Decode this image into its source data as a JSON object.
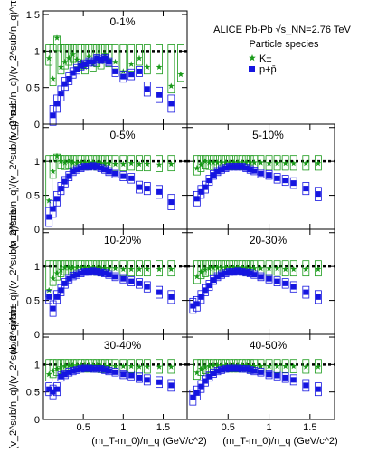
{
  "figure": {
    "x_label": "(m_T-m_0)/n_q (GeV/c^2)",
    "y_label": "(v_2^sub/n_q)/(v_2^sub/n_q)^π±",
    "legend_header": "ALICE Pb-Pb √s_NN=2.76 TeV",
    "legend_title": "Particle species",
    "legend_items": [
      {
        "label": "K±",
        "marker": "star",
        "color": "#1a9a1a"
      },
      {
        "label": "p+p̄",
        "marker": "square",
        "color": "#1515e0"
      }
    ],
    "y_ticks": [
      "0",
      "0.5",
      "1",
      "1.5"
    ],
    "x_ticks": [
      "0.5",
      "1",
      "1.5"
    ]
  },
  "chart_data": [
    {
      "type": "scatter",
      "panel": "0-1%",
      "xlim": [
        0,
        1.8
      ],
      "ylim": [
        0,
        1.55
      ],
      "grid": false,
      "reference_line": 1,
      "series": [
        {
          "name": "K±",
          "x": [
            0.07,
            0.12,
            0.17,
            0.22,
            0.27,
            0.32,
            0.37,
            0.42,
            0.47,
            0.52,
            0.57,
            0.62,
            0.67,
            0.72,
            0.77,
            0.82,
            0.9,
            1.0,
            1.1,
            1.2,
            1.3,
            1.45,
            1.6,
            1.72
          ],
          "y": [
            0.9,
            0.62,
            1.18,
            0.78,
            0.85,
            0.9,
            0.95,
            0.88,
            0.85,
            0.78,
            0.92,
            0.82,
            0.88,
            0.85,
            0.95,
            0.88,
            0.85,
            0.72,
            0.82,
            0.9,
            0.78,
            0.78,
            0.52,
            0.68
          ]
        },
        {
          "name": "p+p̄",
          "x": [
            0.12,
            0.17,
            0.22,
            0.27,
            0.32,
            0.37,
            0.42,
            0.47,
            0.52,
            0.57,
            0.62,
            0.67,
            0.72,
            0.77,
            0.82,
            0.9,
            1.0,
            1.1,
            1.2,
            1.3,
            1.45,
            1.6
          ],
          "y": [
            0.12,
            0.28,
            0.42,
            0.55,
            0.62,
            0.7,
            0.75,
            0.8,
            0.82,
            0.85,
            0.85,
            0.9,
            0.88,
            0.9,
            0.85,
            0.72,
            0.65,
            0.68,
            0.72,
            0.48,
            0.4,
            0.28
          ]
        }
      ]
    },
    {
      "type": "scatter",
      "panel": "0-5%",
      "xlim": [
        0,
        1.8
      ],
      "ylim": [
        0,
        1.55
      ],
      "grid": false,
      "reference_line": 1,
      "series": [
        {
          "name": "K±",
          "x": [
            0.07,
            0.12,
            0.17,
            0.22,
            0.27,
            0.32,
            0.37,
            0.42,
            0.47,
            0.52,
            0.57,
            0.62,
            0.67,
            0.72,
            0.77,
            0.82,
            0.9,
            1.0,
            1.1,
            1.2,
            1.3,
            1.45,
            1.6
          ],
          "y": [
            0.42,
            0.85,
            1.08,
            1.0,
            0.98,
            1.0,
            0.98,
            0.97,
            0.98,
            0.98,
            0.98,
            0.98,
            0.97,
            0.97,
            0.96,
            0.97,
            0.96,
            0.96,
            0.97,
            0.96,
            0.96,
            0.95,
            0.96
          ]
        },
        {
          "name": "p+p̄",
          "x": [
            0.07,
            0.12,
            0.17,
            0.22,
            0.27,
            0.32,
            0.37,
            0.42,
            0.47,
            0.52,
            0.57,
            0.62,
            0.67,
            0.72,
            0.77,
            0.82,
            0.9,
            1.0,
            1.1,
            1.2,
            1.3,
            1.45,
            1.6
          ],
          "y": [
            0.18,
            0.3,
            0.45,
            0.6,
            0.7,
            0.78,
            0.85,
            0.88,
            0.9,
            0.92,
            0.92,
            0.93,
            0.92,
            0.9,
            0.88,
            0.85,
            0.82,
            0.78,
            0.75,
            0.62,
            0.6,
            0.55,
            0.4
          ]
        }
      ]
    },
    {
      "type": "scatter",
      "panel": "5-10%",
      "xlim": [
        0,
        1.8
      ],
      "ylim": [
        0,
        1.55
      ],
      "grid": false,
      "reference_line": 1,
      "series": [
        {
          "name": "K±",
          "x": [
            0.12,
            0.17,
            0.22,
            0.27,
            0.32,
            0.37,
            0.42,
            0.47,
            0.52,
            0.57,
            0.62,
            0.67,
            0.72,
            0.77,
            0.82,
            0.9,
            1.0,
            1.1,
            1.2,
            1.3,
            1.45,
            1.6
          ],
          "y": [
            0.9,
            0.95,
            1.0,
            0.98,
            0.98,
            0.98,
            0.98,
            0.98,
            0.98,
            0.98,
            0.98,
            0.98,
            0.98,
            0.98,
            0.98,
            0.98,
            0.97,
            0.97,
            0.97,
            0.97,
            0.97,
            0.97
          ]
        },
        {
          "name": "p+p̄",
          "x": [
            0.12,
            0.17,
            0.22,
            0.27,
            0.32,
            0.37,
            0.42,
            0.47,
            0.52,
            0.57,
            0.62,
            0.67,
            0.72,
            0.77,
            0.82,
            0.9,
            1.0,
            1.1,
            1.2,
            1.3,
            1.45,
            1.6
          ],
          "y": [
            0.45,
            0.55,
            0.62,
            0.72,
            0.8,
            0.85,
            0.88,
            0.9,
            0.92,
            0.92,
            0.92,
            0.92,
            0.9,
            0.88,
            0.86,
            0.82,
            0.8,
            0.75,
            0.72,
            0.68,
            0.6,
            0.52
          ]
        }
      ]
    },
    {
      "type": "scatter",
      "panel": "10-20%",
      "xlim": [
        0,
        1.8
      ],
      "ylim": [
        0,
        1.55
      ],
      "grid": false,
      "reference_line": 1,
      "series": [
        {
          "name": "K±",
          "x": [
            0.07,
            0.12,
            0.17,
            0.22,
            0.27,
            0.32,
            0.37,
            0.42,
            0.47,
            0.52,
            0.57,
            0.62,
            0.67,
            0.72,
            0.77,
            0.82,
            0.9,
            1.0,
            1.1,
            1.2,
            1.3,
            1.45,
            1.6
          ],
          "y": [
            0.65,
            0.82,
            0.9,
            0.95,
            0.98,
            0.98,
            0.98,
            0.98,
            0.98,
            0.98,
            0.98,
            0.98,
            0.97,
            0.97,
            0.97,
            0.97,
            0.97,
            0.96,
            0.96,
            0.96,
            0.96,
            0.96,
            0.96
          ]
        },
        {
          "name": "p+p̄",
          "x": [
            0.07,
            0.12,
            0.17,
            0.22,
            0.27,
            0.32,
            0.37,
            0.42,
            0.47,
            0.52,
            0.57,
            0.62,
            0.67,
            0.72,
            0.77,
            0.82,
            0.9,
            1.0,
            1.1,
            1.2,
            1.3,
            1.45,
            1.6
          ],
          "y": [
            0.55,
            0.38,
            0.55,
            0.65,
            0.75,
            0.82,
            0.86,
            0.88,
            0.9,
            0.92,
            0.92,
            0.93,
            0.92,
            0.91,
            0.9,
            0.88,
            0.85,
            0.82,
            0.78,
            0.75,
            0.7,
            0.62,
            0.55
          ]
        }
      ]
    },
    {
      "type": "scatter",
      "panel": "20-30%",
      "xlim": [
        0,
        1.8
      ],
      "ylim": [
        0,
        1.55
      ],
      "grid": false,
      "reference_line": 1,
      "series": [
        {
          "name": "K±",
          "x": [
            0.12,
            0.17,
            0.22,
            0.27,
            0.32,
            0.37,
            0.42,
            0.47,
            0.52,
            0.57,
            0.62,
            0.67,
            0.72,
            0.77,
            0.82,
            0.9,
            1.0,
            1.1,
            1.2,
            1.3,
            1.45,
            1.6
          ],
          "y": [
            0.85,
            0.92,
            0.95,
            0.97,
            0.98,
            0.98,
            0.98,
            0.98,
            0.98,
            0.98,
            0.98,
            0.98,
            0.97,
            0.97,
            0.97,
            0.97,
            0.97,
            0.97,
            0.96,
            0.96,
            0.96,
            0.96
          ]
        },
        {
          "name": "p+p̄",
          "x": [
            0.07,
            0.12,
            0.17,
            0.22,
            0.27,
            0.32,
            0.37,
            0.42,
            0.47,
            0.52,
            0.57,
            0.62,
            0.67,
            0.72,
            0.77,
            0.82,
            0.9,
            1.0,
            1.1,
            1.2,
            1.3,
            1.45,
            1.6
          ],
          "y": [
            0.42,
            0.45,
            0.55,
            0.65,
            0.72,
            0.8,
            0.85,
            0.88,
            0.9,
            0.92,
            0.92,
            0.93,
            0.92,
            0.91,
            0.9,
            0.88,
            0.85,
            0.82,
            0.78,
            0.75,
            0.7,
            0.62,
            0.55
          ]
        }
      ]
    },
    {
      "type": "scatter",
      "panel": "30-40%",
      "xlim": [
        0,
        1.8
      ],
      "ylim": [
        0,
        1.55
      ],
      "grid": false,
      "reference_line": 1,
      "series": [
        {
          "name": "K±",
          "x": [
            0.07,
            0.12,
            0.17,
            0.22,
            0.27,
            0.32,
            0.37,
            0.42,
            0.47,
            0.52,
            0.57,
            0.62,
            0.67,
            0.72,
            0.77,
            0.82,
            0.9,
            1.0,
            1.1,
            1.2,
            1.3,
            1.45,
            1.6
          ],
          "y": [
            0.82,
            0.88,
            0.92,
            0.95,
            0.97,
            0.98,
            0.98,
            0.98,
            0.98,
            0.98,
            0.98,
            0.98,
            0.98,
            0.97,
            0.97,
            0.97,
            0.97,
            0.97,
            0.97,
            0.96,
            0.96,
            0.96,
            0.96
          ]
        },
        {
          "name": "p+p̄",
          "x": [
            0.07,
            0.12,
            0.17,
            0.22,
            0.27,
            0.32,
            0.37,
            0.42,
            0.47,
            0.52,
            0.57,
            0.62,
            0.67,
            0.72,
            0.77,
            0.82,
            0.9,
            1.0,
            1.1,
            1.2,
            1.3,
            1.45,
            1.6
          ],
          "y": [
            0.55,
            0.5,
            0.55,
            0.78,
            0.82,
            0.86,
            0.88,
            0.9,
            0.92,
            0.93,
            0.93,
            0.92,
            0.92,
            0.92,
            0.9,
            0.88,
            0.86,
            0.82,
            0.8,
            0.76,
            0.72,
            0.68,
            0.62
          ]
        }
      ]
    },
    {
      "type": "scatter",
      "panel": "40-50%",
      "xlim": [
        0,
        1.8
      ],
      "ylim": [
        0,
        1.55
      ],
      "grid": false,
      "reference_line": 1,
      "series": [
        {
          "name": "K±",
          "x": [
            0.12,
            0.17,
            0.22,
            0.27,
            0.32,
            0.37,
            0.42,
            0.47,
            0.52,
            0.57,
            0.62,
            0.67,
            0.72,
            0.77,
            0.82,
            0.9,
            1.0,
            1.1,
            1.2,
            1.3,
            1.45,
            1.6
          ],
          "y": [
            0.85,
            0.92,
            0.95,
            0.97,
            0.98,
            0.98,
            0.98,
            0.98,
            0.98,
            0.98,
            0.98,
            0.98,
            0.98,
            0.97,
            0.97,
            0.97,
            0.97,
            0.97,
            0.97,
            0.97,
            0.96,
            0.96
          ]
        },
        {
          "name": "p+p̄",
          "x": [
            0.07,
            0.12,
            0.17,
            0.22,
            0.27,
            0.32,
            0.37,
            0.42,
            0.47,
            0.52,
            0.57,
            0.62,
            0.67,
            0.72,
            0.77,
            0.82,
            0.9,
            1.0,
            1.1,
            1.2,
            1.3,
            1.45,
            1.6
          ],
          "y": [
            0.4,
            0.48,
            0.6,
            0.7,
            0.78,
            0.84,
            0.88,
            0.9,
            0.92,
            0.93,
            0.93,
            0.93,
            0.92,
            0.92,
            0.9,
            0.88,
            0.86,
            0.82,
            0.8,
            0.76,
            0.72,
            0.62,
            0.55
          ]
        }
      ]
    }
  ]
}
